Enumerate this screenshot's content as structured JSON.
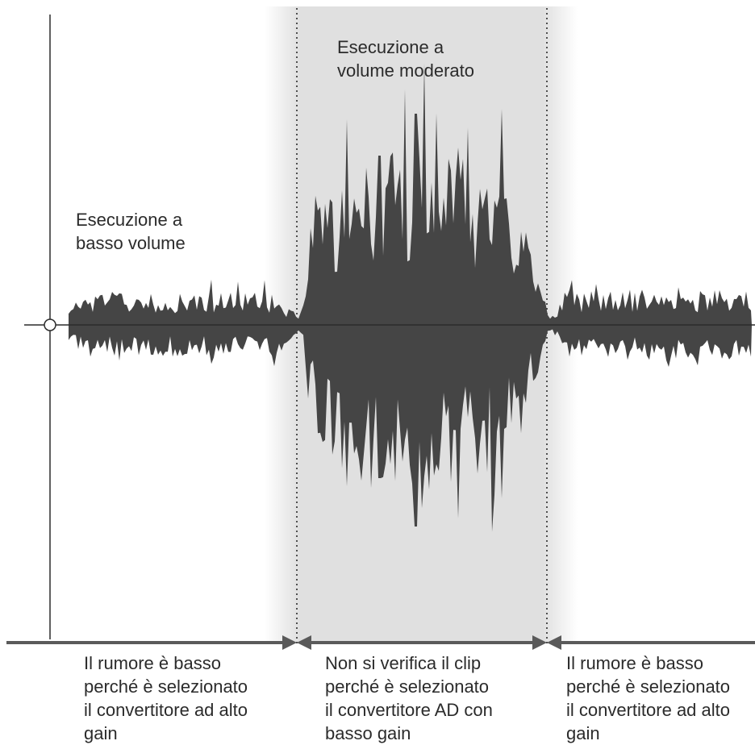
{
  "colors": {
    "waveform": "#454545",
    "highlight_band": "#e0e0e0",
    "axis": "#2b2b2b",
    "range_line": "#5a5a5a",
    "text": "#2b2b2b"
  },
  "labels": {
    "low_volume": [
      "Esecuzione a",
      "basso volume"
    ],
    "moderate_volume": [
      "Esecuzione a",
      "volume moderato"
    ]
  },
  "captions": {
    "left": [
      "Il rumore è basso",
      "perché è selezionato",
      "il convertitore ad alto",
      "gain"
    ],
    "middle": [
      "Non si verifica il clip",
      "perché è selezionato",
      "il convertitore AD con",
      "basso gain"
    ],
    "right": [
      "Il rumore è basso",
      "perché è selezionato",
      "il convertitore ad alto",
      "gain"
    ]
  }
}
